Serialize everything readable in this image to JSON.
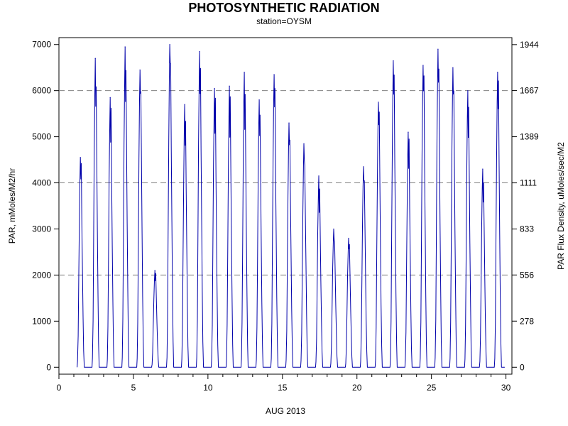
{
  "chart_data": {
    "type": "line",
    "title": "PHOTOSYNTHETIC RADIATION",
    "subtitle": "station=OYSM",
    "xlabel": "AUG 2013",
    "ylabel": "PAR, mMoles/M2/hr",
    "y2label": "PAR Flux Density, uMoles/sec/M2",
    "xlim": [
      0,
      30.4
    ],
    "ylim": [
      -150,
      7150
    ],
    "xticks": [
      0,
      5,
      10,
      15,
      20,
      25,
      30
    ],
    "yticks": [
      0,
      1000,
      2000,
      3000,
      4000,
      5000,
      6000,
      7000
    ],
    "y2ticks": [
      0,
      278,
      556,
      833,
      1111,
      1389,
      1667,
      1944
    ],
    "y2_conversion": 0.27778,
    "reference_lines": [
      2000,
      4000,
      6000
    ],
    "line_color": "#0000aa",
    "grid_color": "#808080",
    "daily_peaks": [
      {
        "day": 1,
        "peak": 4550
      },
      {
        "day": 2,
        "peak": 6700
      },
      {
        "day": 3,
        "peak": 5850
      },
      {
        "day": 4,
        "peak": 6950
      },
      {
        "day": 5,
        "peak": 6450
      },
      {
        "day": 6,
        "peak": 2100
      },
      {
        "day": 7,
        "peak": 7000
      },
      {
        "day": 8,
        "peak": 5700
      },
      {
        "day": 9,
        "peak": 6850
      },
      {
        "day": 10,
        "peak": 6050
      },
      {
        "day": 11,
        "peak": 6100
      },
      {
        "day": 12,
        "peak": 6400
      },
      {
        "day": 13,
        "peak": 5800
      },
      {
        "day": 14,
        "peak": 6350
      },
      {
        "day": 15,
        "peak": 5300
      },
      {
        "day": 16,
        "peak": 4850
      },
      {
        "day": 17,
        "peak": 4150
      },
      {
        "day": 18,
        "peak": 3000
      },
      {
        "day": 19,
        "peak": 2800
      },
      {
        "day": 20,
        "peak": 4350
      },
      {
        "day": 21,
        "peak": 5750
      },
      {
        "day": 22,
        "peak": 6650
      },
      {
        "day": 23,
        "peak": 5100
      },
      {
        "day": 24,
        "peak": 6550
      },
      {
        "day": 25,
        "peak": 6900
      },
      {
        "day": 26,
        "peak": 6500
      },
      {
        "day": 27,
        "peak": 6000
      },
      {
        "day": 28,
        "peak": 4300
      },
      {
        "day": 29,
        "peak": 6400
      }
    ]
  }
}
